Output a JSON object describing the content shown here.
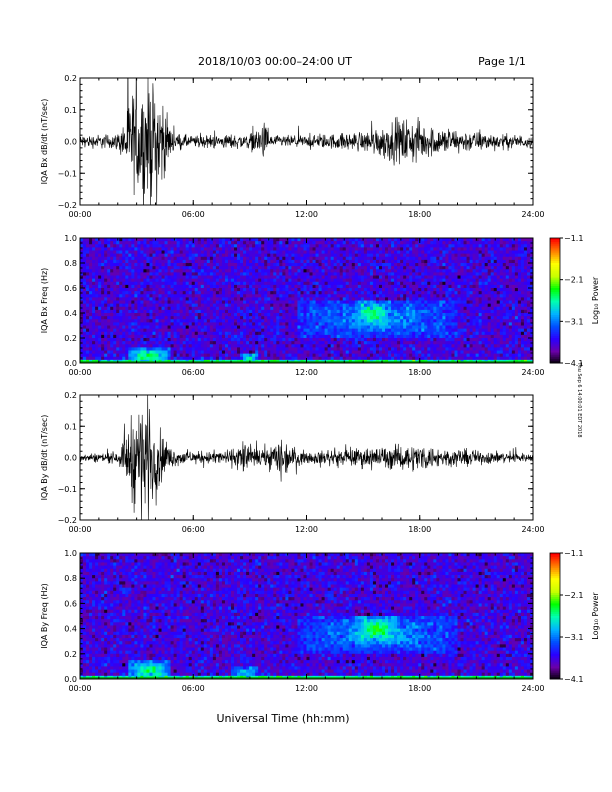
{
  "header": {
    "title": "2018/10/03   00:00–24:00 UT",
    "page": "Page 1/1"
  },
  "footer": {
    "xlabel": "Universal Time (hh:mm)",
    "side_note": "Thu Sep 6 14:00:01 EDT 2018"
  },
  "colors": {
    "trace": "#000000",
    "colormap": [
      "#000000",
      "#6a00a8",
      "#2a00ff",
      "#0050ff",
      "#00b4ff",
      "#00ffb0",
      "#00ff00",
      "#c8ff00",
      "#ffff00",
      "#ff8000",
      "#ff0000"
    ]
  },
  "chart_data": [
    {
      "type": "line",
      "ylabel": "IQA Bx dB/dt (nT/sec)",
      "ylim": [
        -0.2,
        0.2
      ],
      "yticks": [
        "0.2",
        "0.1",
        "0.0",
        "−0.1",
        "−0.2"
      ],
      "xticks": [
        "00:00",
        "06:00",
        "12:00",
        "18:00",
        "24:00"
      ],
      "x_unit": "hours UT",
      "xlim": [
        0,
        24
      ],
      "activity_envelope": [
        [
          0,
          0.03
        ],
        [
          2,
          0.04
        ],
        [
          2.3,
          0.1
        ],
        [
          2.6,
          0.22
        ],
        [
          3.2,
          0.3
        ],
        [
          4.2,
          0.3
        ],
        [
          4.6,
          0.12
        ],
        [
          5,
          0.04
        ],
        [
          6,
          0.03
        ],
        [
          9,
          0.04
        ],
        [
          9.9,
          0.1
        ],
        [
          10,
          0.03
        ],
        [
          12,
          0.03
        ],
        [
          15,
          0.05
        ],
        [
          16.5,
          0.1
        ],
        [
          17.5,
          0.12
        ],
        [
          18.5,
          0.08
        ],
        [
          20,
          0.06
        ],
        [
          22,
          0.04
        ],
        [
          24,
          0.03
        ]
      ]
    },
    {
      "type": "heatmap",
      "ylabel": "IQA Bx Freq (Hz)",
      "ylim": [
        0.0,
        1.0
      ],
      "yticks": [
        "1.0",
        "0.8",
        "0.6",
        "0.4",
        "0.2",
        "0.0"
      ],
      "xticks": [
        "00:00",
        "06:00",
        "12:00",
        "18:00",
        "24:00"
      ],
      "colorbar": {
        "label": "Log₁₀ Power",
        "ticks": [
          "−1.1",
          "−2.1",
          "−3.1",
          "−4.1"
        ],
        "range": [
          -4.1,
          -1.1
        ]
      },
      "features": [
        {
          "t0": 2.5,
          "t1": 4.8,
          "f0": 0.0,
          "f1": 0.12,
          "level": -2.3
        },
        {
          "t0": 8.5,
          "t1": 9.5,
          "f0": 0.0,
          "f1": 0.08,
          "level": -2.6
        },
        {
          "t0": 11.5,
          "t1": 20.0,
          "f0": 0.2,
          "f1": 0.5,
          "level": -2.9
        },
        {
          "t0": 14.5,
          "t1": 16.5,
          "f0": 0.28,
          "f1": 0.5,
          "level": -2.3
        }
      ]
    },
    {
      "type": "line",
      "ylabel": "IQA By dB/dt (nT/sec)",
      "ylim": [
        -0.2,
        0.2
      ],
      "yticks": [
        "0.2",
        "0.1",
        "0.0",
        "−0.1",
        "−0.2"
      ],
      "xticks": [
        "00:00",
        "06:00",
        "12:00",
        "18:00",
        "24:00"
      ],
      "x_unit": "hours UT",
      "xlim": [
        0,
        24
      ],
      "activity_envelope": [
        [
          0,
          0.02
        ],
        [
          2,
          0.03
        ],
        [
          2.3,
          0.08
        ],
        [
          3.0,
          0.3
        ],
        [
          3.7,
          0.3
        ],
        [
          4.2,
          0.15
        ],
        [
          4.8,
          0.05
        ],
        [
          6,
          0.03
        ],
        [
          8,
          0.04
        ],
        [
          8.8,
          0.1
        ],
        [
          9.2,
          0.04
        ],
        [
          10,
          0.06
        ],
        [
          10.8,
          0.12
        ],
        [
          11.2,
          0.05
        ],
        [
          12,
          0.03
        ],
        [
          15,
          0.05
        ],
        [
          16.5,
          0.06
        ],
        [
          18,
          0.07
        ],
        [
          19,
          0.05
        ],
        [
          24,
          0.02
        ]
      ]
    },
    {
      "type": "heatmap",
      "ylabel": "IQA By Freq (Hz)",
      "ylim": [
        0.0,
        1.0
      ],
      "yticks": [
        "1.0",
        "0.8",
        "0.6",
        "0.4",
        "0.2",
        "0.0"
      ],
      "xticks": [
        "00:00",
        "06:00",
        "12:00",
        "18:00",
        "24:00"
      ],
      "colorbar": {
        "label": "Log₁₀ Power",
        "ticks": [
          "−1.1",
          "−2.1",
          "−3.1",
          "−4.1"
        ],
        "range": [
          -4.1,
          -1.1
        ]
      },
      "features": [
        {
          "t0": 2.5,
          "t1": 4.8,
          "f0": 0.0,
          "f1": 0.14,
          "level": -2.3
        },
        {
          "t0": 8.0,
          "t1": 9.5,
          "f0": 0.0,
          "f1": 0.1,
          "level": -2.7
        },
        {
          "t0": 11.5,
          "t1": 20.0,
          "f0": 0.2,
          "f1": 0.5,
          "level": -2.9
        },
        {
          "t0": 14.5,
          "t1": 17.0,
          "f0": 0.28,
          "f1": 0.5,
          "level": -2.2
        }
      ]
    }
  ]
}
